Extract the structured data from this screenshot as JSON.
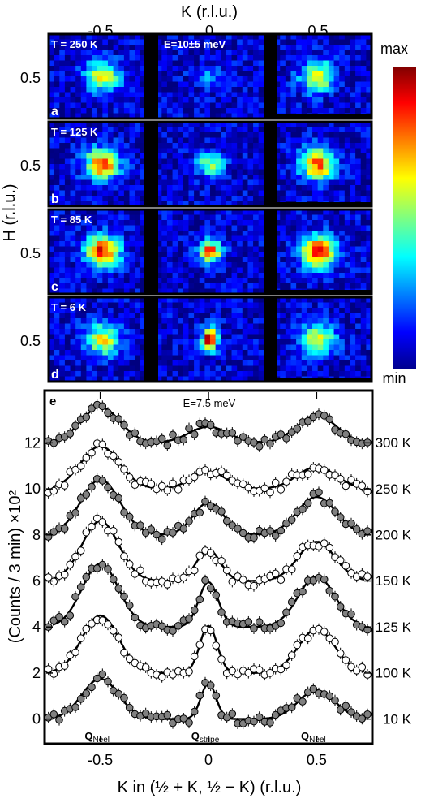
{
  "top_axis": {
    "label": "K (r.l.u.)",
    "ticks": [
      {
        "v": -0.5,
        "t": "-0.5"
      },
      {
        "v": 0,
        "t": "0"
      },
      {
        "v": 0.5,
        "t": "0.5"
      }
    ]
  },
  "panels_ylabel": "H (r.l.u.)",
  "panels_ytick": "0.5",
  "colorbar": {
    "max": "max",
    "min": "min"
  },
  "panels": [
    {
      "letter": "a",
      "temp": "T = 250 K",
      "energy": "E=10±5 meV",
      "center": 0.15,
      "side": 0.55,
      "width": 0.055
    },
    {
      "letter": "b",
      "temp": "T = 125 K",
      "energy": "",
      "center": 0.45,
      "side": 0.72,
      "width": 0.045
    },
    {
      "letter": "c",
      "temp": "T = 85 K",
      "energy": "",
      "center": 0.75,
      "side": 0.82,
      "width": 0.035
    },
    {
      "letter": "d",
      "temp": "T = 6 K",
      "energy": "",
      "center": 0.95,
      "side": 0.55,
      "width": 0.025
    }
  ],
  "chart_data": {
    "type": "scatter",
    "panel_letter": "e",
    "annotation": "E=7.5 meV",
    "xlabel": "K in (½ + K, ½ − K) (r.l.u.)",
    "ylabel": "(Counts / 3 min) ×10²",
    "xlim": [
      -0.75,
      0.75
    ],
    "ylim": [
      -1,
      14.2
    ],
    "x_ticks": [
      {
        "v": -0.5,
        "t": "-0.5"
      },
      {
        "v": 0,
        "t": "0"
      },
      {
        "v": 0.5,
        "t": "0.5"
      }
    ],
    "y_ticks": [
      0,
      2,
      4,
      6,
      8,
      10,
      12
    ],
    "peak_labels": [
      {
        "x": -0.5,
        "base": "Q",
        "sub": "Néel"
      },
      {
        "x": 0,
        "base": "Q",
        "sub": "stripe"
      },
      {
        "x": 0.5,
        "base": "Q",
        "sub": "Néel"
      }
    ],
    "series": [
      {
        "name": "10 K",
        "offset": 0,
        "filled": true,
        "amp_left": 1.75,
        "amp_center": 1.55,
        "amp_right": 1.25,
        "width": 0.085,
        "width_center": 0.035
      },
      {
        "name": "100 K",
        "offset": 2,
        "filled": false,
        "amp_left": 2.5,
        "amp_center": 2.05,
        "amp_right": 1.9,
        "width": 0.085,
        "width_center": 0.04
      },
      {
        "name": "125 K",
        "offset": 4,
        "filled": true,
        "amp_left": 2.75,
        "amp_center": 1.95,
        "amp_right": 2.2,
        "width": 0.085,
        "width_center": 0.045
      },
      {
        "name": "150 K",
        "offset": 6,
        "filled": false,
        "amp_left": 2.6,
        "amp_center": 1.35,
        "amp_right": 1.7,
        "width": 0.085,
        "width_center": 0.055
      },
      {
        "name": "200 K",
        "offset": 8,
        "filled": true,
        "amp_left": 2.4,
        "amp_center": 1.4,
        "amp_right": 1.65,
        "width": 0.09,
        "width_center": 0.07
      },
      {
        "name": "250 K",
        "offset": 10,
        "filled": false,
        "amp_left": 1.85,
        "amp_center": 0.75,
        "amp_right": 0.95,
        "width": 0.09,
        "width_center": 0.08
      },
      {
        "name": "300 K",
        "offset": 12,
        "filled": true,
        "amp_left": 1.55,
        "amp_center": 0.7,
        "amp_right": 1.2,
        "width": 0.09,
        "width_center": 0.09
      }
    ]
  },
  "colors": {
    "frame": "#000000",
    "filled_marker": "#808080",
    "open_marker": "#ffffff",
    "heat_background": "#14148c"
  }
}
